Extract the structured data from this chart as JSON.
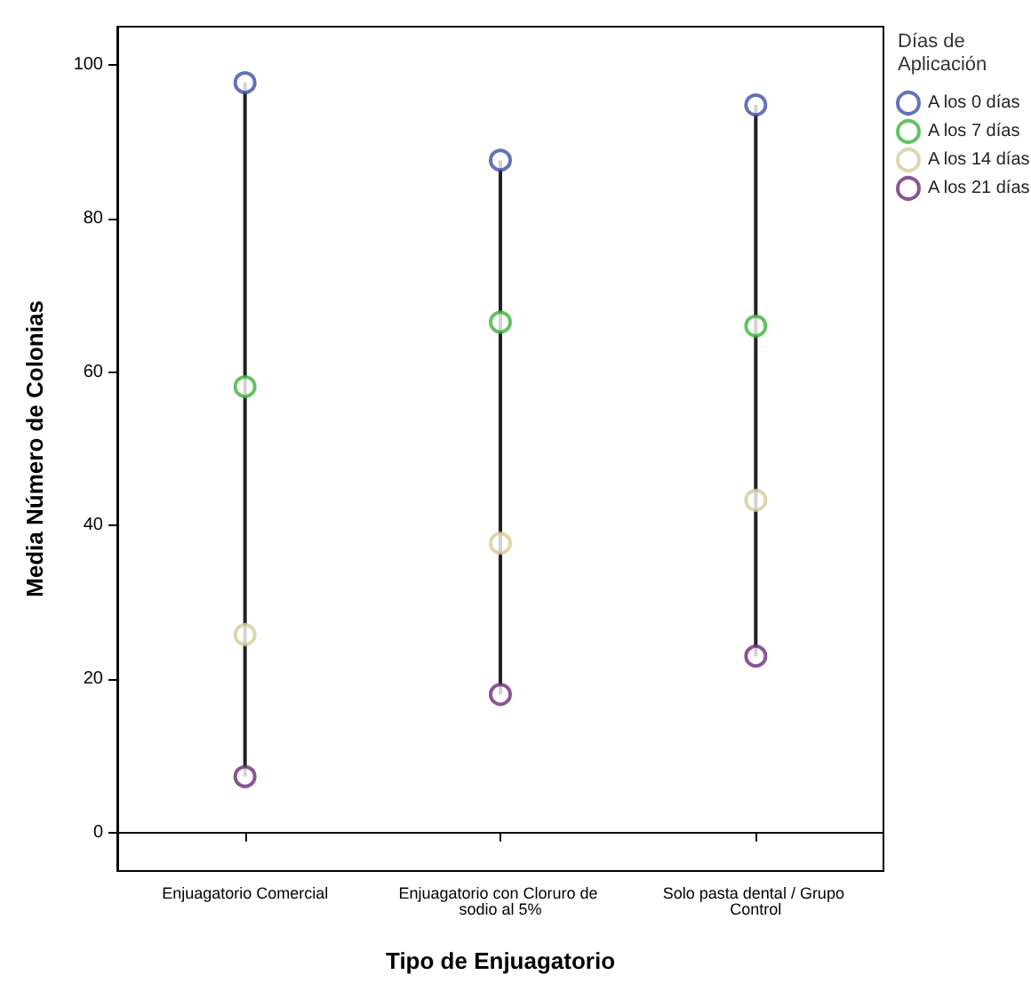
{
  "chart_data": {
    "type": "scatter",
    "xlabel": "Tipo de Enjuagatorio",
    "ylabel": "Media Número de Colonias",
    "legend_title": "Días de Aplicación",
    "categories": [
      "Enjuagatorio Comercial",
      "Enjuagatorio con Cloruro de sodio al 5%",
      "Solo pasta dental / Grupo Control"
    ],
    "series": [
      {
        "name": "A los 0 días",
        "color": "#3c4fa8",
        "values": [
          97.7,
          87.6,
          94.8
        ]
      },
      {
        "name": "A los 7 días",
        "color": "#3cb43c",
        "values": [
          58.1,
          66.5,
          66.0
        ]
      },
      {
        "name": "A los 14 días",
        "color": "#d4cc9a",
        "values": [
          25.8,
          37.7,
          43.3
        ]
      },
      {
        "name": "A los 21 días",
        "color": "#6b2a7a",
        "values": [
          7.3,
          18.0,
          23.0
        ]
      }
    ],
    "ylim": [
      -5,
      105
    ],
    "yticks": [
      0,
      20,
      40,
      60,
      80,
      100
    ],
    "grid": false,
    "legend": "top right",
    "marker": "circle"
  }
}
